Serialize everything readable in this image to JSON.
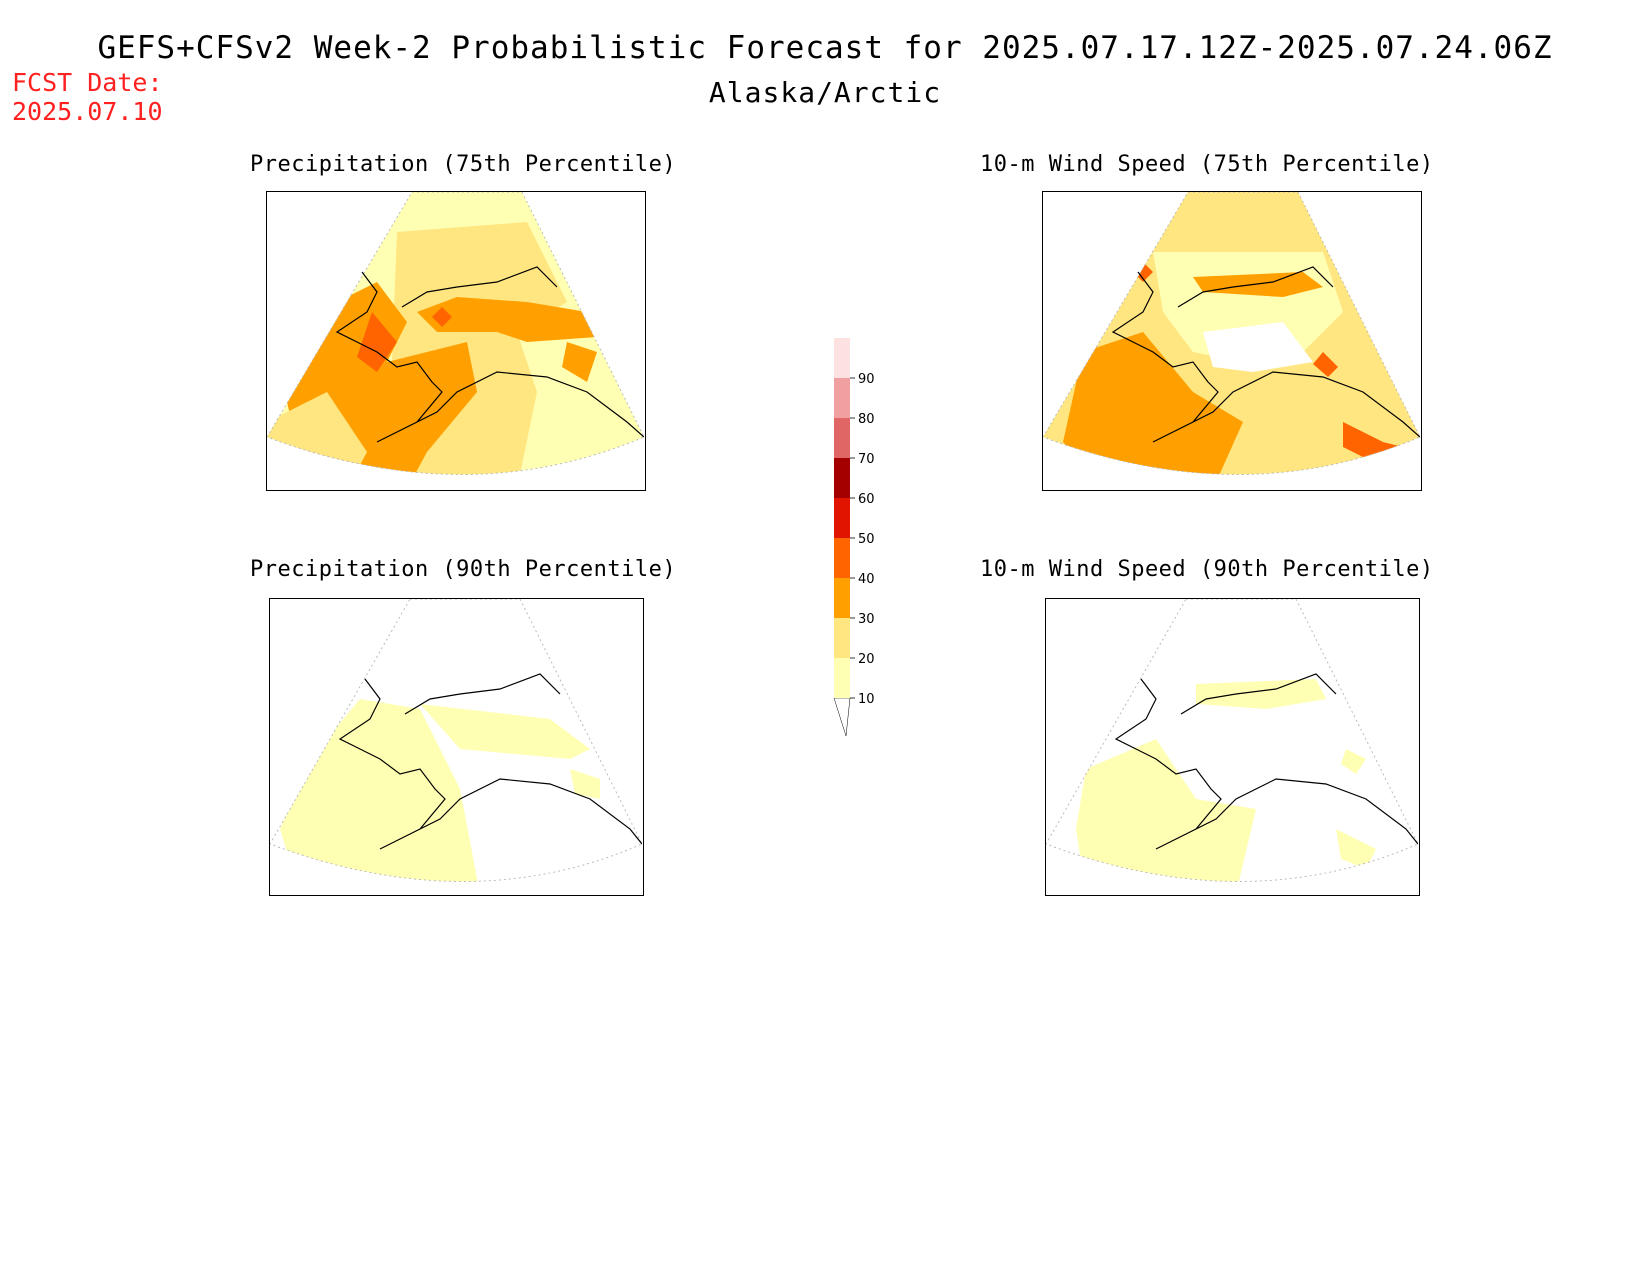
{
  "header": {
    "title": "GEFS+CFSv2 Week-2 Probabilistic Forecast for 2025.07.17.12Z-2025.07.24.06Z",
    "subtitle": "Alaska/Arctic",
    "fcst_label": "FCST Date:",
    "fcst_date": "2025.07.10"
  },
  "panels": [
    {
      "id": "precip-75",
      "title": "Precipitation (75th Percentile)"
    },
    {
      "id": "wind-75",
      "title": "10-m Wind Speed (75th Percentile)"
    },
    {
      "id": "precip-90",
      "title": "Precipitation (90th Percentile)"
    },
    {
      "id": "wind-90",
      "title": "10-m Wind Speed (90th Percentile)"
    }
  ],
  "colorbar": {
    "levels": [
      {
        "label": "10",
        "color": "#ffffb4"
      },
      {
        "label": "20",
        "color": "#ffe680"
      },
      {
        "label": "30",
        "color": "#ffa000"
      },
      {
        "label": "40",
        "color": "#ff6400"
      },
      {
        "label": "50",
        "color": "#e11400"
      },
      {
        "label": "60",
        "color": "#a50000"
      },
      {
        "label": "70",
        "color": "#e06666"
      },
      {
        "label": "80",
        "color": "#f0a0a0"
      },
      {
        "label": "90",
        "color": "#fde0e0"
      }
    ],
    "top_color": "#fde0e0"
  }
}
